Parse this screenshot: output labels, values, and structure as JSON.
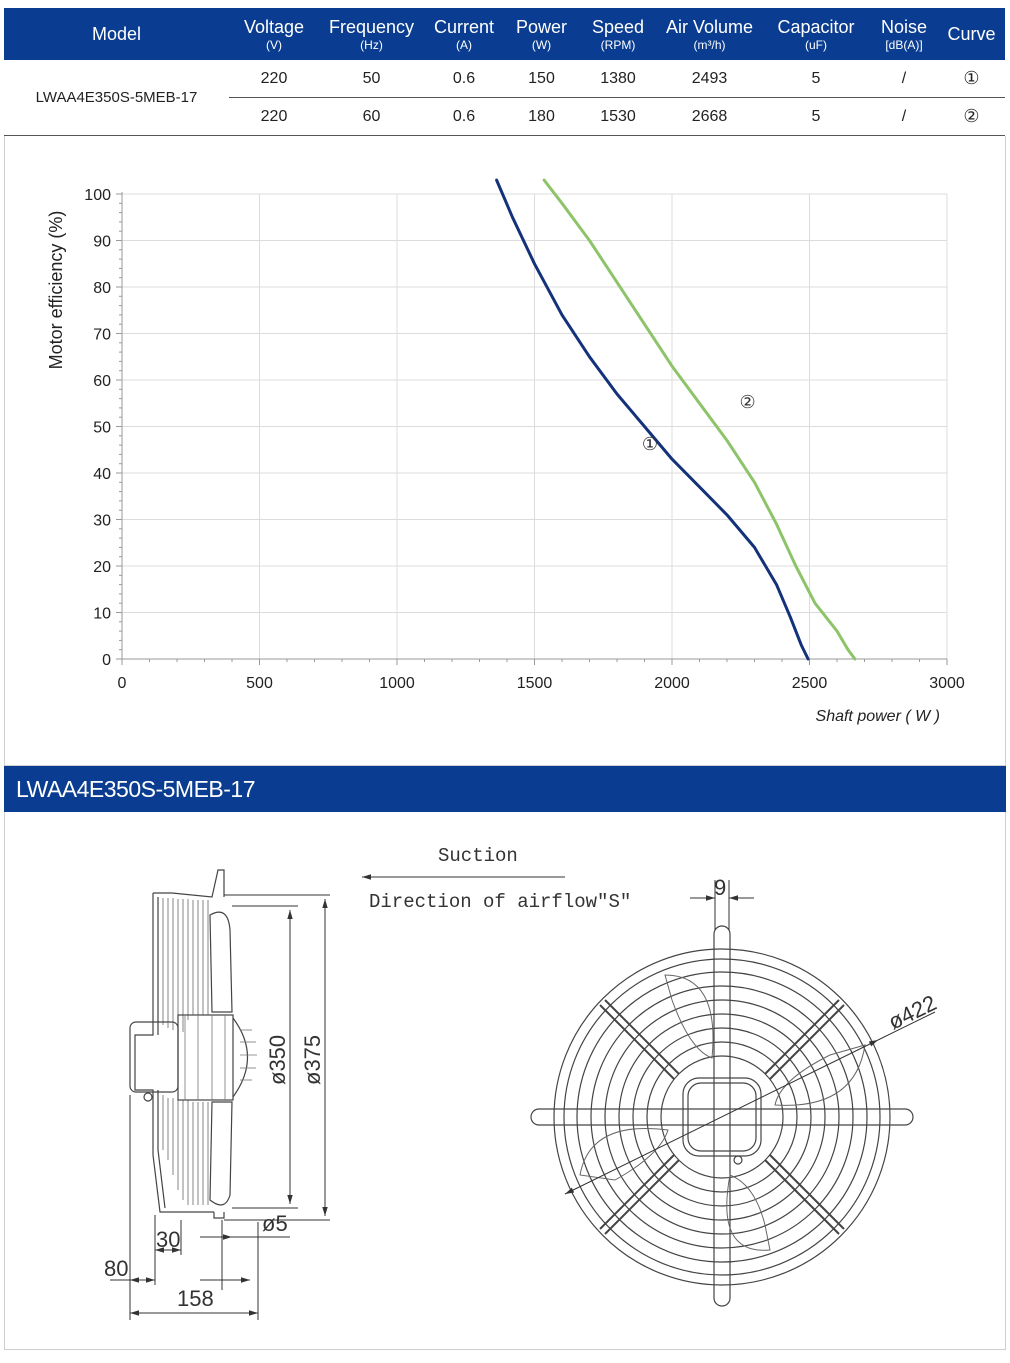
{
  "spec_table": {
    "headers": [
      {
        "label": "Model",
        "unit": ""
      },
      {
        "label": "Voltage",
        "unit": "(V)"
      },
      {
        "label": "Frequency",
        "unit": "(Hz)"
      },
      {
        "label": "Current",
        "unit": "(A)"
      },
      {
        "label": "Power",
        "unit": "(W)"
      },
      {
        "label": "Speed",
        "unit": "(RPM)"
      },
      {
        "label": "Air Volume",
        "unit": "(m³/h)"
      },
      {
        "label": "Capacitor",
        "unit": "(uF)"
      },
      {
        "label": "Noise",
        "unit": "[dB(A)]"
      },
      {
        "label": "Curve",
        "unit": ""
      }
    ],
    "model": "LWAA4E350S-5MEB-17",
    "rows": [
      {
        "voltage": "220",
        "frequency": "50",
        "current": "0.6",
        "power": "150",
        "speed": "1380",
        "air_volume": "2493",
        "capacitor": "5",
        "noise": "/",
        "curve": "①"
      },
      {
        "voltage": "220",
        "frequency": "60",
        "current": "0.6",
        "power": "180",
        "speed": "1530",
        "air_volume": "2668",
        "capacitor": "5",
        "noise": "/",
        "curve": "②"
      }
    ]
  },
  "chart_data": {
    "type": "line",
    "title": "",
    "xlabel": "Shaft power ( W )",
    "ylabel": "Motor efficiency  (%)",
    "xlim": [
      0,
      3000
    ],
    "ylim": [
      0,
      100
    ],
    "x_ticks": [
      "0",
      "500",
      "1000",
      "1500",
      "2000",
      "2500",
      "3000"
    ],
    "y_ticks": [
      "0",
      "10",
      "20",
      "30",
      "40",
      "50",
      "60",
      "70",
      "80",
      "90",
      "100"
    ],
    "grid": true,
    "series": [
      {
        "name": "①",
        "color": "#13327a",
        "label_at": {
          "x": 1920,
          "y": 45
        },
        "points": [
          [
            1362,
            103
          ],
          [
            1420,
            95
          ],
          [
            1500,
            85
          ],
          [
            1600,
            74
          ],
          [
            1700,
            65
          ],
          [
            1800,
            57
          ],
          [
            1900,
            50
          ],
          [
            2000,
            43
          ],
          [
            2100,
            37
          ],
          [
            2200,
            31
          ],
          [
            2300,
            24
          ],
          [
            2380,
            16
          ],
          [
            2430,
            9
          ],
          [
            2470,
            3
          ],
          [
            2495,
            0
          ]
        ]
      },
      {
        "name": "②",
        "color": "#8dc46a",
        "label_at": {
          "x": 2275,
          "y": 54
        },
        "points": [
          [
            1535,
            103
          ],
          [
            1600,
            98
          ],
          [
            1700,
            90
          ],
          [
            1800,
            81
          ],
          [
            1900,
            72
          ],
          [
            2000,
            63
          ],
          [
            2100,
            55
          ],
          [
            2200,
            47
          ],
          [
            2300,
            38
          ],
          [
            2380,
            29
          ],
          [
            2450,
            20
          ],
          [
            2520,
            12
          ],
          [
            2600,
            6
          ],
          [
            2640,
            2
          ],
          [
            2665,
            0
          ]
        ]
      }
    ]
  },
  "section": {
    "title": "LWAA4E350S-5MEB-17"
  },
  "drawing": {
    "suction_label": "Suction",
    "airflow_label": "Direction of airflow\"S\"",
    "dimensions": {
      "d350": "ø350",
      "d375": "ø375",
      "d5": "ø5",
      "d30": "30",
      "d80": "80",
      "d158": "158",
      "d9": "9",
      "d422": "ø422"
    }
  }
}
